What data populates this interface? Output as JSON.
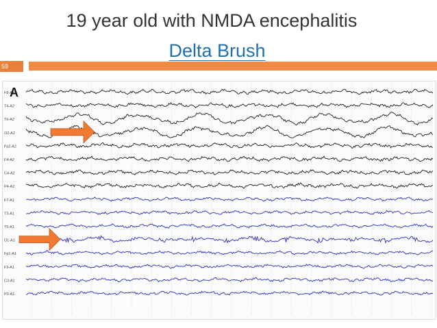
{
  "slide": {
    "title_line1": "19 year old with NMDA encephalitis",
    "title_line2": "Delta Brush",
    "slide_number": "59"
  },
  "figure": {
    "panel_label": "A",
    "channels": [
      {
        "label": "F8-A2",
        "color": "#1a1a1a"
      },
      {
        "label": "T4-A2",
        "color": "#1a1a1a"
      },
      {
        "label": "T6-A2",
        "color": "#1a1a1a"
      },
      {
        "label": "O2-A2",
        "color": "#1a1a1a"
      },
      {
        "label": "Fp2-A2",
        "color": "#1a1a1a"
      },
      {
        "label": "F4-A2",
        "color": "#1a1a1a"
      },
      {
        "label": "C4-A2",
        "color": "#1a1a1a"
      },
      {
        "label": "P4-A2",
        "color": "#1a1a1a"
      },
      {
        "label": "F7-A1",
        "color": "#2a2ab8"
      },
      {
        "label": "T3-A1",
        "color": "#2a2ab8"
      },
      {
        "label": "T5-A1",
        "color": "#2a2ab8"
      },
      {
        "label": "O1-A1",
        "color": "#2a2ab8"
      },
      {
        "label": "Fp1-A1",
        "color": "#2a2ab8"
      },
      {
        "label": "F3-A1",
        "color": "#2a2ab8"
      },
      {
        "label": "C3-A1",
        "color": "#2a2ab8"
      },
      {
        "label": "P3-A1",
        "color": "#2a2ab8"
      }
    ],
    "arrows": [
      {
        "channel_index": 3,
        "color": "#f07a32"
      },
      {
        "channel_index": 11,
        "color": "#f07a32"
      }
    ],
    "colors": {
      "accent": "#ef8b45",
      "title_link": "#1f6fb2",
      "grid": "#c8c8c8"
    }
  }
}
